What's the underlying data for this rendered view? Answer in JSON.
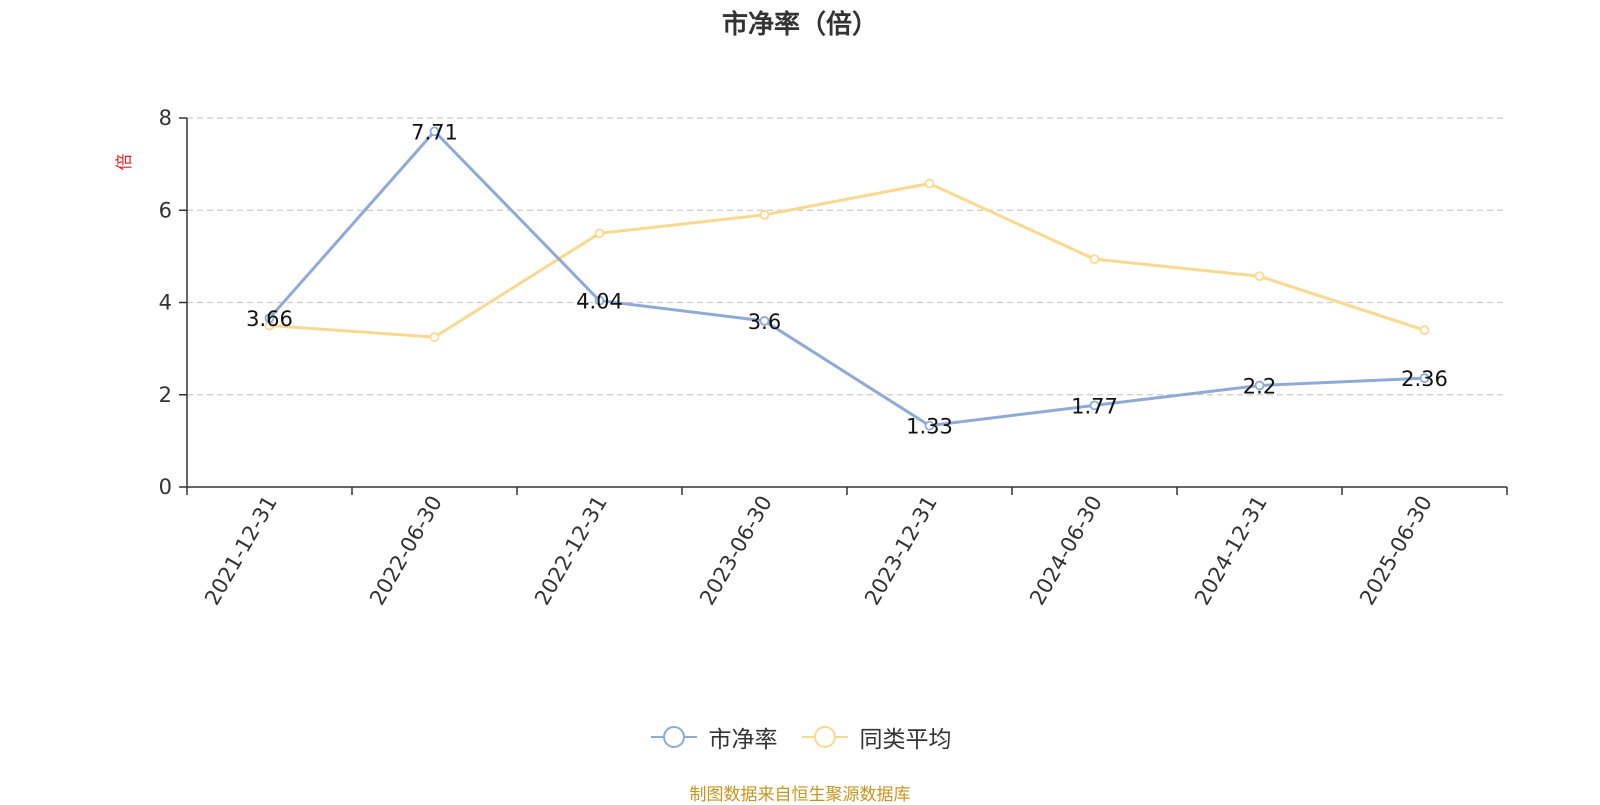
{
  "chart_data": {
    "type": "line",
    "title": "市净率（倍）",
    "ylabel": "倍",
    "ylim": [
      0,
      8
    ],
    "yticks": [
      0,
      2,
      4,
      6,
      8
    ],
    "grid": true,
    "legend_position": "bottom",
    "categories": [
      "2021-12-31",
      "2022-06-30",
      "2022-12-31",
      "2023-06-30",
      "2023-12-31",
      "2024-06-30",
      "2024-12-31",
      "2025-06-30"
    ],
    "series": [
      {
        "name": "市净率",
        "color": "#8eaad6",
        "values": [
          3.66,
          7.71,
          4.04,
          3.6,
          1.33,
          1.77,
          2.2,
          2.36
        ],
        "labels": [
          "3.66",
          "7.71",
          "4.04",
          "3.6",
          "1.33",
          "1.77",
          "2.2",
          "2.36"
        ]
      },
      {
        "name": "同类平均",
        "color": "#fad88f",
        "values": [
          3.5,
          3.25,
          5.5,
          5.9,
          6.58,
          4.94,
          4.57,
          3.4
        ]
      }
    ]
  },
  "source_note": "制图数据来自恒生聚源数据库",
  "colors": {
    "ylabel": "#e02020",
    "axis": "#333333",
    "grid": "#cccccc",
    "source_note": "#c8961e"
  }
}
